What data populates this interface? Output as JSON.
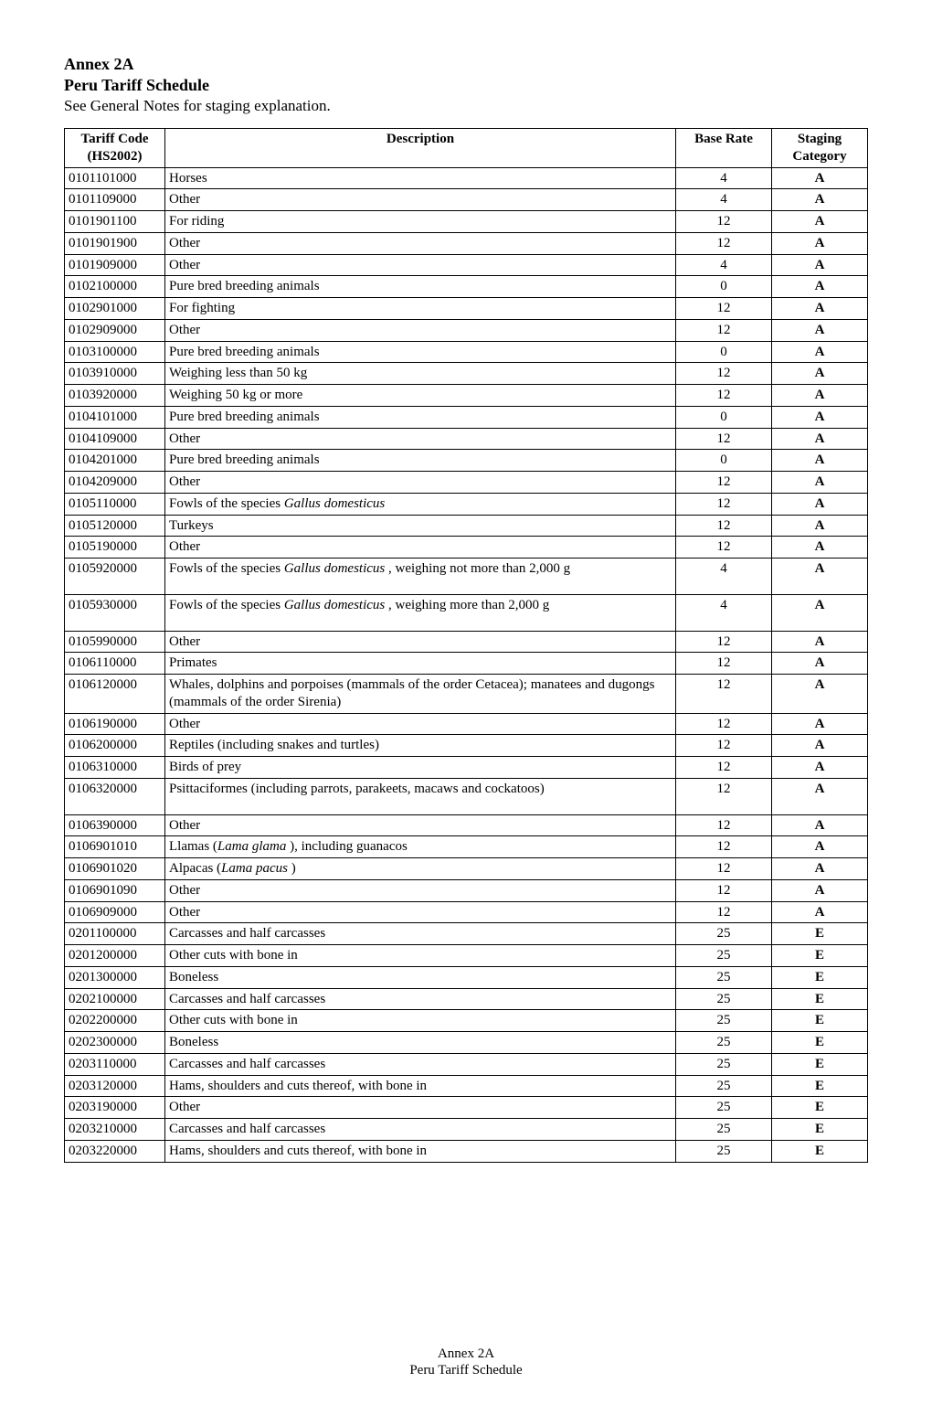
{
  "header": {
    "annex": "Annex 2A",
    "schedule": "Peru Tariff Schedule",
    "note": "See General Notes for staging explanation."
  },
  "table": {
    "columns": [
      "Tariff Code (HS2002)",
      "Description",
      "Base Rate",
      "Staging Category"
    ],
    "rows": [
      {
        "code": "0101101000",
        "desc": "Horses",
        "rate": "4",
        "cat": "A"
      },
      {
        "code": "0101109000",
        "desc": "Other",
        "rate": "4",
        "cat": "A"
      },
      {
        "code": "0101901100",
        "desc": "For riding",
        "rate": "12",
        "cat": "A"
      },
      {
        "code": "0101901900",
        "desc": "Other",
        "rate": "12",
        "cat": "A"
      },
      {
        "code": "0101909000",
        "desc": "Other",
        "rate": "4",
        "cat": "A"
      },
      {
        "code": "0102100000",
        "desc": "Pure  bred breeding animals",
        "rate": "0",
        "cat": "A"
      },
      {
        "code": "0102901000",
        "desc": "For fighting",
        "rate": "12",
        "cat": "A"
      },
      {
        "code": "0102909000",
        "desc": "Other",
        "rate": "12",
        "cat": "A"
      },
      {
        "code": "0103100000",
        "desc": "Pure  bred breeding animals",
        "rate": "0",
        "cat": "A"
      },
      {
        "code": "0103910000",
        "desc": "Weighing less than 50 kg",
        "rate": "12",
        "cat": "A"
      },
      {
        "code": "0103920000",
        "desc": "Weighing 50 kg or more",
        "rate": "12",
        "cat": "A"
      },
      {
        "code": "0104101000",
        "desc": "Pure  bred breeding animals",
        "rate": "0",
        "cat": "A"
      },
      {
        "code": "0104109000",
        "desc": "Other",
        "rate": "12",
        "cat": "A"
      },
      {
        "code": "0104201000",
        "desc": "Pure  bred breeding animals",
        "rate": "0",
        "cat": "A"
      },
      {
        "code": "0104209000",
        "desc": "Other",
        "rate": "12",
        "cat": "A"
      },
      {
        "code": "0105110000",
        "desc_html": "Fowls of the species <span class=\"italic\">Gallus domesticus</span>",
        "rate": "12",
        "cat": "A"
      },
      {
        "code": "0105120000",
        "desc": "Turkeys",
        "rate": "12",
        "cat": "A"
      },
      {
        "code": "0105190000",
        "desc": "Other",
        "rate": "12",
        "cat": "A"
      },
      {
        "code": "0105920000",
        "desc_html": "Fowls of the species <span class=\"italic\">Gallus domesticus</span> , weighing not more than 2,000 g",
        "rate": "4",
        "cat": "A",
        "tall": true
      },
      {
        "code": "0105930000",
        "desc_html": "Fowls of the species <span class=\"italic\">Gallus domesticus</span> , weighing more than 2,000 g",
        "rate": "4",
        "cat": "A",
        "tall": true
      },
      {
        "code": "0105990000",
        "desc": "Other",
        "rate": "12",
        "cat": "A"
      },
      {
        "code": "0106110000",
        "desc": "Primates",
        "rate": "12",
        "cat": "A"
      },
      {
        "code": "0106120000",
        "desc": "Whales, dolphins and porpoises (mammals of the order Cetacea); manatees and dugongs (mammals of the order Sirenia)",
        "rate": "12",
        "cat": "A"
      },
      {
        "code": "0106190000",
        "desc": "Other",
        "rate": "12",
        "cat": "A"
      },
      {
        "code": "0106200000",
        "desc": "Reptiles (including snakes and turtles)",
        "rate": "12",
        "cat": "A"
      },
      {
        "code": "0106310000",
        "desc": "Birds of prey",
        "rate": "12",
        "cat": "A"
      },
      {
        "code": "0106320000",
        "desc": "Psittaciformes (including parrots, parakeets, macaws and cockatoos)",
        "rate": "12",
        "cat": "A",
        "tall": true
      },
      {
        "code": "0106390000",
        "desc": "Other",
        "rate": "12",
        "cat": "A"
      },
      {
        "code": "0106901010",
        "desc_html": "Llamas (<span class=\"italic\">Lama glama</span> ), including guanacos",
        "rate": "12",
        "cat": "A"
      },
      {
        "code": "0106901020",
        "desc_html": "Alpacas (<span class=\"italic\">Lama pacus</span> )",
        "rate": "12",
        "cat": "A"
      },
      {
        "code": "0106901090",
        "desc": "Other",
        "rate": "12",
        "cat": "A"
      },
      {
        "code": "0106909000",
        "desc": "Other",
        "rate": "12",
        "cat": "A"
      },
      {
        "code": "0201100000",
        "desc": "Carcasses and half  carcasses",
        "rate": "25",
        "cat": "E"
      },
      {
        "code": "0201200000",
        "desc": "Other cuts with bone in",
        "rate": "25",
        "cat": "E"
      },
      {
        "code": "0201300000",
        "desc": "Boneless",
        "rate": "25",
        "cat": "E"
      },
      {
        "code": "0202100000",
        "desc": "Carcasses and half  carcasses",
        "rate": "25",
        "cat": "E"
      },
      {
        "code": "0202200000",
        "desc": "Other cuts with bone in",
        "rate": "25",
        "cat": "E"
      },
      {
        "code": "0202300000",
        "desc": "Boneless",
        "rate": "25",
        "cat": "E"
      },
      {
        "code": "0203110000",
        "desc": "Carcasses and half  carcasses",
        "rate": "25",
        "cat": "E"
      },
      {
        "code": "0203120000",
        "desc": "Hams, shoulders and cuts thereof, with bone in",
        "rate": "25",
        "cat": "E"
      },
      {
        "code": "0203190000",
        "desc": "Other",
        "rate": "25",
        "cat": "E"
      },
      {
        "code": "0203210000",
        "desc": "Carcasses and half  carcasses",
        "rate": "25",
        "cat": "E"
      },
      {
        "code": "0203220000",
        "desc": "Hams, shoulders and cuts thereof, with bone in",
        "rate": "25",
        "cat": "E"
      }
    ]
  },
  "footer": {
    "line1": "Annex 2A",
    "line2": "Peru Tariff Schedule"
  }
}
